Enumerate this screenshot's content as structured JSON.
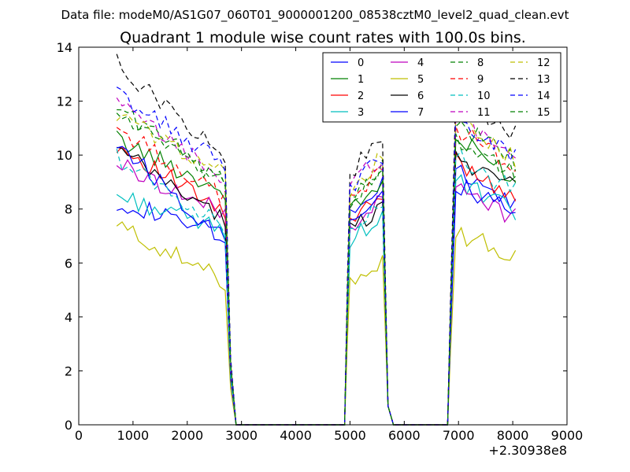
{
  "file_label": "Data file: modeM0/AS1G07_060T01_9000001200_08538cztM0_level2_quad_clean.evt",
  "chart_data": {
    "type": "line",
    "title": "Quadrant 1 module wise count rates with 100.0s bins.",
    "xlabel": "",
    "ylabel": "",
    "x_offset_label": "+2.30938e8",
    "xlim": [
      0,
      9000
    ],
    "ylim": [
      0,
      14
    ],
    "x_ticks": [
      0,
      1000,
      2000,
      3000,
      4000,
      5000,
      6000,
      7000,
      8000,
      9000
    ],
    "y_ticks": [
      0,
      2,
      4,
      6,
      8,
      10,
      12,
      14
    ],
    "x_tick_labels": [
      "0",
      "1000",
      "2000",
      "3000",
      "4000",
      "5000",
      "6000",
      "7000",
      "8000",
      "9000"
    ],
    "y_tick_labels": [
      "0",
      "2",
      "4",
      "6",
      "8",
      "10",
      "12",
      "14"
    ],
    "grid": false,
    "legend_placement": "top-right",
    "legend_columns": 4,
    "segments": [
      {
        "x_start": 700,
        "x_end": 2700
      },
      {
        "x_start": 4950,
        "x_end": 5600
      },
      {
        "x_start": 6950,
        "x_end": 8100
      }
    ],
    "series": [
      {
        "name": "0",
        "color": "#0000ff",
        "dash": "solid",
        "level_a": 8.3,
        "level_b": 7.0,
        "level_c": 8.7,
        "level_d": 8.5
      },
      {
        "name": "1",
        "color": "#008000",
        "dash": "solid",
        "level_a": 10.6,
        "level_b": 8.6,
        "level_c": 8.8,
        "level_d": 9.6
      },
      {
        "name": "2",
        "color": "#ff0000",
        "dash": "solid",
        "level_a": 10.4,
        "level_b": 7.8,
        "level_c": 8.3,
        "level_d": 8.9
      },
      {
        "name": "3",
        "color": "#00bfbf",
        "dash": "solid",
        "level_a": 8.5,
        "level_b": 7.2,
        "level_c": 7.6,
        "level_d": 8.2
      },
      {
        "name": "4",
        "color": "#bf00bf",
        "dash": "solid",
        "level_a": 9.7,
        "level_b": 7.8,
        "level_c": 8.2,
        "level_d": 8.0
      },
      {
        "name": "5",
        "color": "#bfbf00",
        "dash": "solid",
        "level_a": 7.4,
        "level_b": 5.3,
        "level_c": 6.0,
        "level_d": 6.5
      },
      {
        "name": "6",
        "color": "#000000",
        "dash": "solid",
        "level_a": 10.2,
        "level_b": 7.6,
        "level_c": 8.0,
        "level_d": 9.1
      },
      {
        "name": "7",
        "color": "#0000ff",
        "dash": "solid",
        "level_a": 10.5,
        "level_b": 6.8,
        "level_c": 8.5,
        "level_d": 8.1
      },
      {
        "name": "8",
        "color": "#008000",
        "dash": "dashed",
        "level_a": 11.8,
        "level_b": 9.0,
        "level_c": 9.4,
        "level_d": 10.2
      },
      {
        "name": "9",
        "color": "#ff0000",
        "dash": "dashed",
        "level_a": 11.0,
        "level_b": 8.4,
        "level_c": 9.3,
        "level_d": 10.0
      },
      {
        "name": "10",
        "color": "#00bfbf",
        "dash": "dashed",
        "level_a": 9.9,
        "level_b": 7.3,
        "level_c": 8.2,
        "level_d": 9.0
      },
      {
        "name": "11",
        "color": "#bf00bf",
        "dash": "dashed",
        "level_a": 11.9,
        "level_b": 9.1,
        "level_c": 9.8,
        "level_d": 10.4
      },
      {
        "name": "12",
        "color": "#bfbf00",
        "dash": "dashed",
        "level_a": 11.5,
        "level_b": 9.3,
        "level_c": 9.7,
        "level_d": 10.3
      },
      {
        "name": "13",
        "color": "#000000",
        "dash": "dashed",
        "level_a": 13.4,
        "level_b": 9.9,
        "level_c": 10.4,
        "level_d": 11.2
      },
      {
        "name": "14",
        "color": "#0000ff",
        "dash": "dashed",
        "level_a": 12.3,
        "level_b": 9.6,
        "level_c": 9.8,
        "level_d": 10.4
      },
      {
        "name": "15",
        "color": "#008000",
        "dash": "dashed",
        "level_a": 11.6,
        "level_b": 8.8,
        "level_c": 9.2,
        "level_d": 9.7
      }
    ]
  }
}
